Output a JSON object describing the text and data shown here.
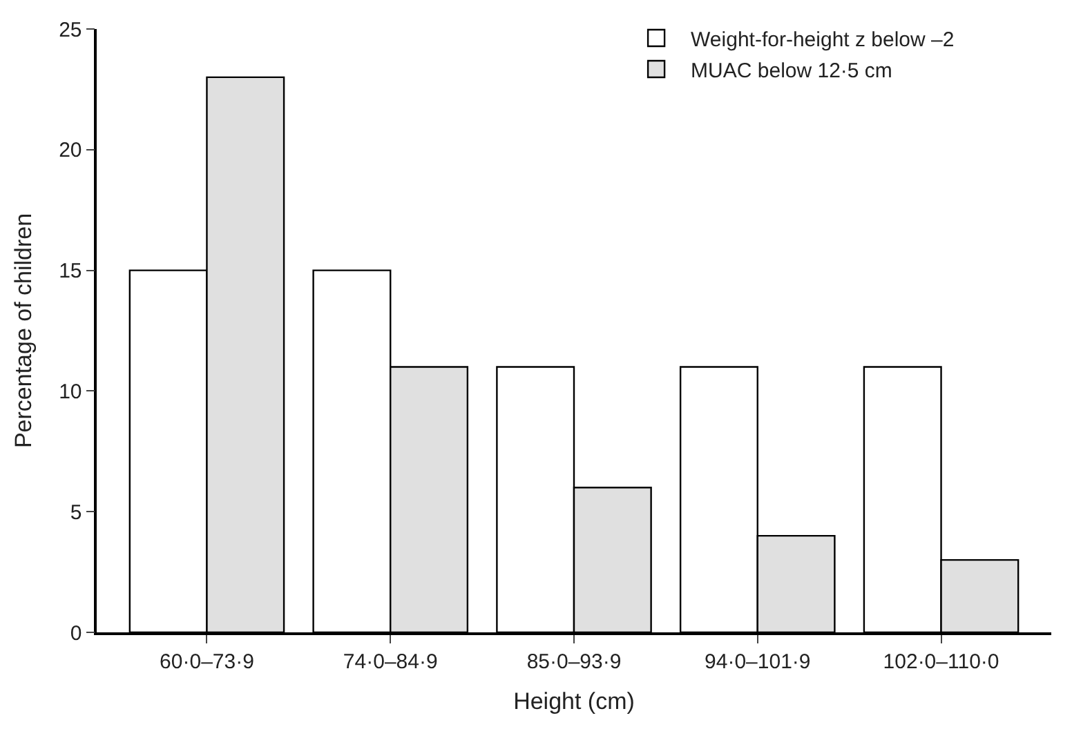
{
  "chart_data": {
    "type": "bar",
    "xlabel": "Height (cm)",
    "ylabel": "Percentage of children",
    "categories": [
      "60·0–73·9",
      "74·0–84·9",
      "85·0–93·9",
      "94·0–101·9",
      "102·0–110·0"
    ],
    "series": [
      {
        "name": "Weight-for-height z below –2",
        "color": "#ffffff",
        "values": [
          15,
          15,
          11,
          11,
          11
        ]
      },
      {
        "name": "MUAC below 12·5 cm",
        "color": "#e0e0e0",
        "values": [
          23,
          11,
          6,
          4,
          3
        ]
      }
    ],
    "ylim": [
      0,
      25
    ],
    "yticks": [
      0,
      5,
      10,
      15,
      20,
      25
    ],
    "grid": false,
    "legend": "top right"
  }
}
